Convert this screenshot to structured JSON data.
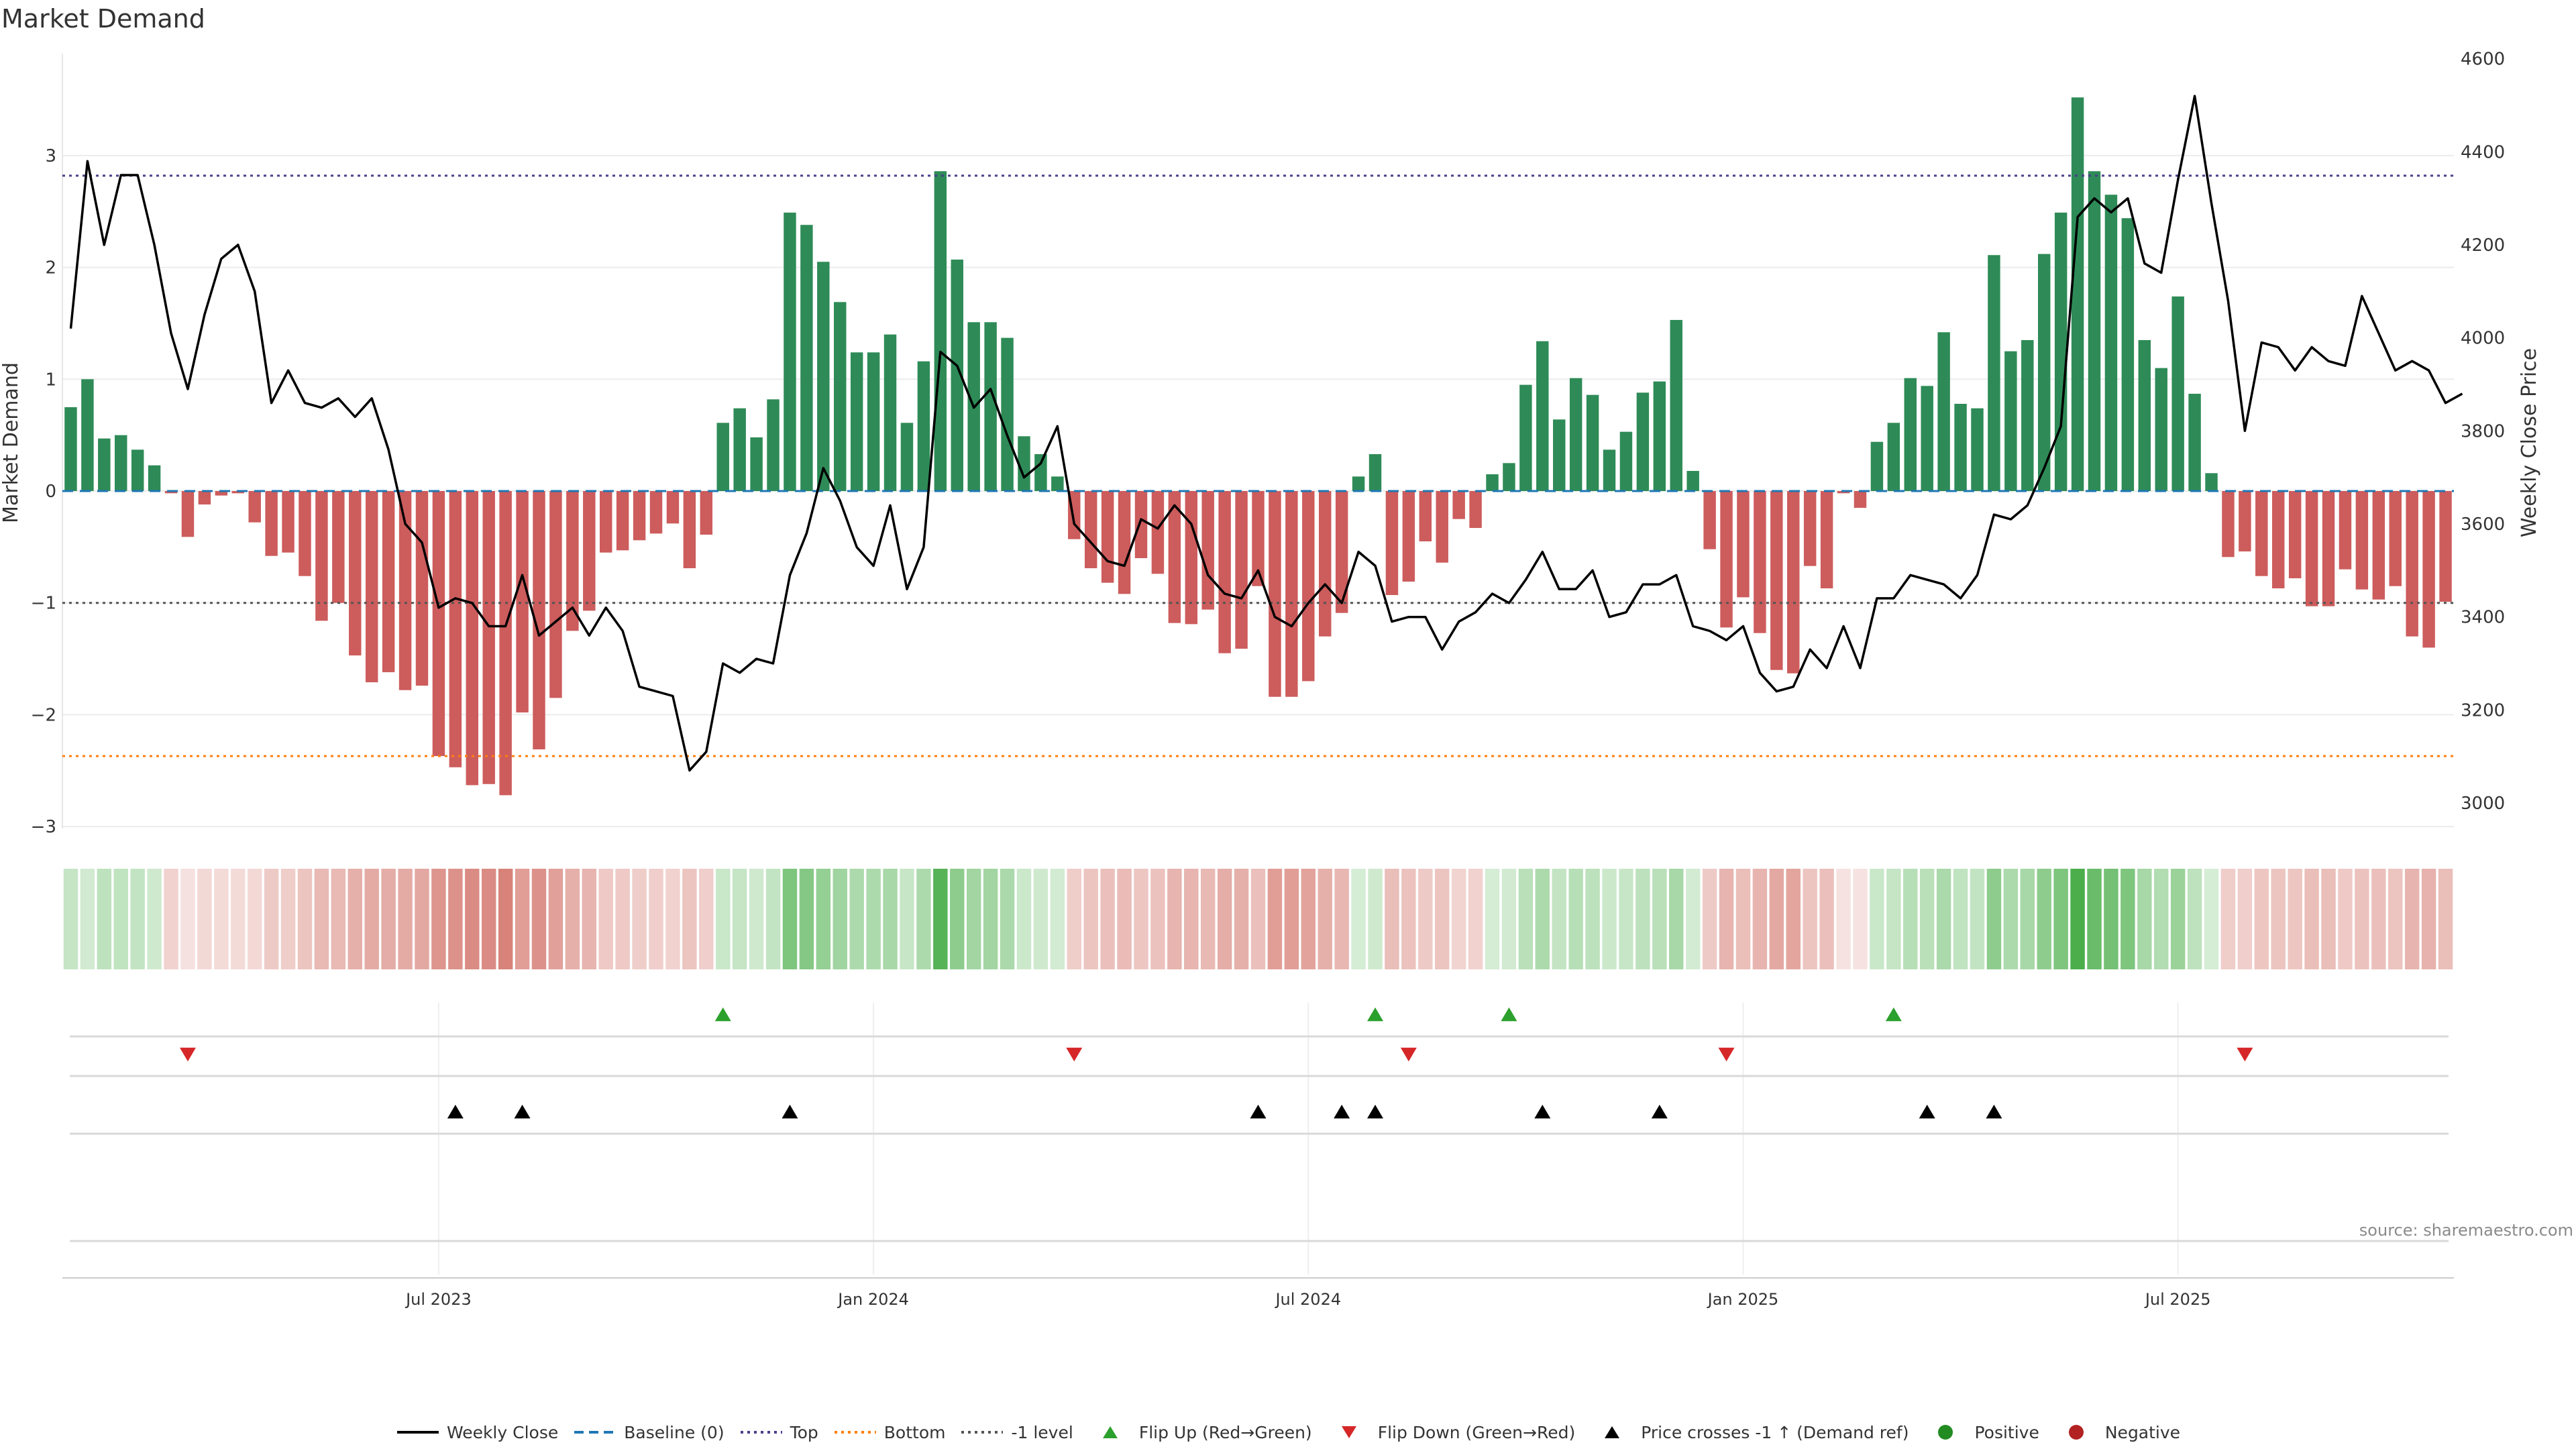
{
  "title": "Market Demand",
  "source": "source: sharemaestro.com",
  "colors": {
    "positive": "#2e8b57",
    "negative": "#cd5c5c",
    "price": "#000000",
    "baseline": "#1f77b4",
    "top": "#4a3f8a",
    "bottom": "#ff7f0e",
    "minus_one": "#555555",
    "flip_up": "#2ca02c",
    "flip_down": "#d62728",
    "cross": "#000000",
    "legend_positive": "#228b22",
    "legend_negative": "#b22222"
  },
  "legend": [
    {
      "label": "Weekly Close",
      "icon": "solid-line"
    },
    {
      "label": "Baseline (0)",
      "icon": "dashed-line"
    },
    {
      "label": "Top",
      "icon": "dotted-line"
    },
    {
      "label": "Bottom",
      "icon": "dotted-line"
    },
    {
      "label": "-1 level",
      "icon": "dotted-line"
    },
    {
      "label": "Flip Up (Red→Green)",
      "icon": "triangle-up"
    },
    {
      "label": "Flip Down (Green→Red)",
      "icon": "triangle-down"
    },
    {
      "label": "Price crosses -1 ↑ (Demand ref)",
      "icon": "triangle-up"
    },
    {
      "label": "Positive",
      "icon": "circle"
    },
    {
      "label": "Negative",
      "icon": "circle"
    }
  ],
  "chart_data": {
    "type": "bar",
    "title": "Market Demand",
    "xlabel": "",
    "ylabel": "Market Demand",
    "y2label": "Weekly Close Price",
    "ylim": [
      -3.0,
      3.7
    ],
    "y2lim": [
      2950,
      4600
    ],
    "yticks": [
      -3,
      -2,
      -1,
      0,
      1,
      2,
      3
    ],
    "ytick_labels": [
      "−3",
      "−2",
      "−1",
      "0",
      "1",
      "2",
      "3"
    ],
    "y2ticks": [
      3000,
      3200,
      3400,
      3600,
      3800,
      4000,
      4200,
      4400,
      4600
    ],
    "xticks": [
      {
        "week": 22,
        "label": "Jul 2023"
      },
      {
        "week": 48,
        "label": "Jan 2024"
      },
      {
        "week": 74,
        "label": "Jul 2024"
      },
      {
        "week": 100,
        "label": "Jan 2025"
      },
      {
        "week": 126,
        "label": "Jul 2025"
      }
    ],
    "reference_lines": {
      "baseline": 0,
      "top": 2.82,
      "bottom": -2.37,
      "minus_one": -1.0
    },
    "series": [
      {
        "name": "Market Demand",
        "values": [
          0.75,
          1.0,
          0.47,
          0.5,
          0.37,
          0.23,
          -0.02,
          -0.41,
          -0.12,
          -0.04,
          -0.02,
          -0.28,
          -0.58,
          -0.55,
          -0.76,
          -1.16,
          -1.0,
          -1.47,
          -1.71,
          -1.62,
          -1.78,
          -1.74,
          -2.37,
          -2.47,
          -2.63,
          -2.62,
          -2.72,
          -1.98,
          -2.31,
          -1.85,
          -1.25,
          -1.07,
          -0.55,
          -0.53,
          -0.44,
          -0.38,
          -0.29,
          -0.69,
          -0.39,
          0.61,
          0.74,
          0.48,
          0.82,
          2.49,
          2.38,
          2.05,
          1.69,
          1.24,
          1.24,
          1.4,
          0.61,
          1.16,
          2.86,
          2.07,
          1.51,
          1.51,
          1.37,
          0.49,
          0.33,
          0.13,
          -0.43,
          -0.69,
          -0.82,
          -0.92,
          -0.6,
          -0.74,
          -1.18,
          -1.19,
          -1.06,
          -1.45,
          -1.41,
          -0.85,
          -1.84,
          -1.84,
          -1.7,
          -1.3,
          -1.09,
          0.13,
          0.33,
          -0.93,
          -0.81,
          -0.45,
          -0.64,
          -0.25,
          -0.33,
          0.15,
          0.25,
          0.95,
          1.34,
          0.64,
          1.01,
          0.86,
          0.37,
          0.53,
          0.88,
          0.98,
          1.53,
          0.18,
          -0.52,
          -1.22,
          -0.95,
          -1.27,
          -1.6,
          -1.63,
          -0.67,
          -0.87,
          -0.02,
          -0.15,
          0.44,
          0.61,
          1.01,
          0.94,
          1.42,
          0.78,
          0.74,
          2.11,
          1.25,
          1.35,
          2.12,
          2.49,
          3.52,
          2.86,
          2.65,
          2.44,
          1.35,
          1.1,
          1.74,
          0.87,
          0.16,
          -0.59,
          -0.54,
          -0.76,
          -0.87,
          -0.78,
          -1.03,
          -1.03,
          -0.7,
          -0.88,
          -0.97,
          -0.85,
          -1.3,
          -1.4,
          -0.99
        ]
      },
      {
        "name": "Weekly Close",
        "axis": "y2",
        "values": [
          4020,
          4380,
          4200,
          4350,
          4350,
          4200,
          4010,
          3890,
          4050,
          4170,
          4200,
          4100,
          3860,
          3930,
          3860,
          3850,
          3870,
          3830,
          3870,
          3760,
          3600,
          3560,
          3420,
          3440,
          3430,
          3380,
          3380,
          3490,
          3360,
          3390,
          3420,
          3360,
          3420,
          3370,
          3250,
          3240,
          3230,
          3070,
          3110,
          3300,
          3280,
          3310,
          3300,
          3490,
          3580,
          3720,
          3650,
          3550,
          3510,
          3640,
          3460,
          3550,
          3970,
          3940,
          3850,
          3890,
          3790,
          3700,
          3730,
          3810,
          3600,
          3560,
          3520,
          3510,
          3610,
          3590,
          3640,
          3600,
          3490,
          3450,
          3440,
          3500,
          3400,
          3380,
          3430,
          3470,
          3430,
          3540,
          3510,
          3390,
          3400,
          3400,
          3330,
          3390,
          3410,
          3450,
          3430,
          3480,
          3540,
          3460,
          3460,
          3500,
          3400,
          3410,
          3470,
          3470,
          3490,
          3380,
          3370,
          3350,
          3380,
          3280,
          3240,
          3250,
          3330,
          3290,
          3380,
          3290,
          3440,
          3440,
          3490,
          3480,
          3470,
          3440,
          3490,
          3620,
          3610,
          3640,
          3720,
          3810,
          4260,
          4300,
          4270,
          4300,
          4160,
          4140,
          4340,
          4520,
          4290,
          4080,
          3800,
          3990,
          3980,
          3930,
          3980,
          3950,
          3940,
          4090,
          4010,
          3930,
          3950,
          3930,
          3860,
          3880
        ]
      }
    ],
    "color_strip_intensity": [
      0.6,
      0.54,
      0.63,
      0.62,
      0.61,
      0.55,
      0.55,
      0.46,
      0.51,
      0.5,
      0.5,
      0.51,
      0.59,
      0.58,
      0.62,
      0.67,
      0.67,
      0.71,
      0.73,
      0.72,
      0.73,
      0.74,
      0.81,
      0.82,
      0.84,
      0.84,
      0.87,
      0.78,
      0.82,
      0.77,
      0.71,
      0.69,
      0.6,
      0.6,
      0.58,
      0.57,
      0.55,
      0.62,
      0.57,
      0.58,
      0.6,
      0.55,
      0.61,
      0.86,
      0.84,
      0.79,
      0.75,
      0.7,
      0.7,
      0.72,
      0.59,
      0.7,
      0.97,
      0.81,
      0.74,
      0.74,
      0.71,
      0.57,
      0.55,
      0.53,
      0.58,
      0.62,
      0.64,
      0.66,
      0.61,
      0.63,
      0.69,
      0.69,
      0.67,
      0.72,
      0.71,
      0.64,
      0.78,
      0.78,
      0.76,
      0.71,
      0.68,
      0.52,
      0.55,
      0.65,
      0.63,
      0.59,
      0.62,
      0.54,
      0.55,
      0.52,
      0.54,
      0.65,
      0.7,
      0.61,
      0.66,
      0.64,
      0.57,
      0.59,
      0.64,
      0.65,
      0.72,
      0.53,
      0.59,
      0.69,
      0.65,
      0.69,
      0.74,
      0.75,
      0.62,
      0.64,
      0.44,
      0.44,
      0.58,
      0.6,
      0.66,
      0.65,
      0.71,
      0.62,
      0.61,
      0.81,
      0.7,
      0.72,
      0.81,
      0.86,
      1.0,
      0.92,
      0.89,
      0.86,
      0.72,
      0.68,
      0.77,
      0.63,
      0.52,
      0.58,
      0.57,
      0.61,
      0.62,
      0.61,
      0.65,
      0.65,
      0.6,
      0.63,
      0.64,
      0.62,
      0.69,
      0.7,
      0.65
    ],
    "flip_up_weeks": [
      39,
      78,
      86,
      109
    ],
    "flip_down_weeks": [
      7,
      60,
      80,
      99,
      130
    ],
    "price_cross_weeks": [
      23,
      27,
      43,
      71,
      76,
      78,
      88,
      95,
      111,
      115
    ]
  }
}
